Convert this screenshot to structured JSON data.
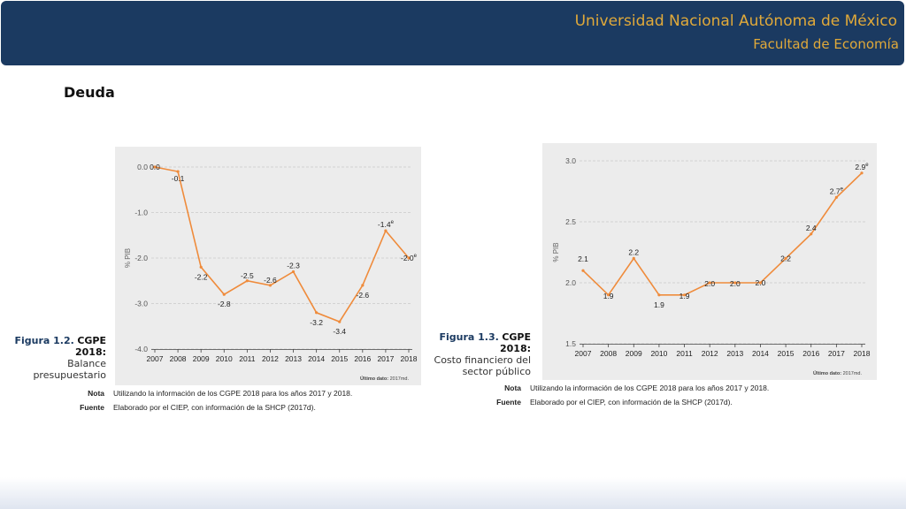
{
  "header": {
    "university": "Universidad Nacional Autónoma de México",
    "faculty": "Facultad de Economía"
  },
  "slide_title": "Deuda",
  "figures": [
    {
      "fig_number": "Figura 1.2.",
      "fig_name": "CGPE 2018:",
      "caption_lines": [
        "Balance",
        "presupuestario"
      ],
      "nota_label": "Nota",
      "nota_text": "Utilizando la información de los CGPE 2018 para los años 2017 y 2018.",
      "fuente_label": "Fuente",
      "fuente_text": "Elaborado por el CIEP, con información de la SHCP (2017d)."
    },
    {
      "fig_number": "Figura 1.3.",
      "fig_name": "CGPE 2018:",
      "caption_lines": [
        "Costo financiero del",
        "sector público"
      ],
      "nota_label": "Nota",
      "nota_text": "Utilizando la información de los CGPE 2018 para los años 2017 y 2018.",
      "fuente_label": "Fuente",
      "fuente_text": "Elaborado por el CIEP, con información de la SHCP (2017d)."
    }
  ],
  "chart_data": [
    {
      "type": "line",
      "x": [
        "2007",
        "2008",
        "2009",
        "2010",
        "2011",
        "2012",
        "2013",
        "2014",
        "2015",
        "2016",
        "2017",
        "2018"
      ],
      "series": [
        {
          "values": [
            0.0,
            -0.1,
            -2.2,
            -2.8,
            -2.5,
            -2.6,
            -2.3,
            -3.2,
            -3.4,
            -2.6,
            -1.4,
            -2.0
          ]
        }
      ],
      "point_labels": [
        "0.0",
        "-0.1",
        "-2.2",
        "-2.8",
        "-2.5",
        "-2.6",
        "-2.3",
        "-3.2",
        "-3.4",
        "-2.6",
        "-1.4",
        "-2.0"
      ],
      "estimate_marker": "e",
      "estimate_years": [
        "2017",
        "2018"
      ],
      "ylabel": "% PIB",
      "ylim": [
        -4.0,
        0.0
      ],
      "yticks": [
        "0.0",
        "-1.0",
        "-2.0",
        "-3.0",
        "-4.0"
      ],
      "ytick_values": [
        0.0,
        -1.0,
        -2.0,
        -3.0,
        -4.0
      ],
      "grid": true,
      "line_color": "#ef8b3b",
      "source_note_label": "Último dato:",
      "source_note_value": "2017md."
    },
    {
      "type": "line",
      "x": [
        "2007",
        "2008",
        "2009",
        "2010",
        "2011",
        "2012",
        "2013",
        "2014",
        "2015",
        "2016",
        "2017",
        "2018"
      ],
      "series": [
        {
          "values": [
            2.1,
            1.9,
            2.2,
            1.9,
            1.9,
            2.0,
            2.0,
            2.0,
            2.2,
            2.4,
            2.7,
            2.9
          ]
        }
      ],
      "point_labels": [
        "2.1",
        "1.9",
        "2.2",
        "1.9",
        "1.9",
        "2.0",
        "2.0",
        "2.0",
        "2.2",
        "2.4",
        "2.7",
        "2.9"
      ],
      "estimate_marker": "e",
      "estimate_years": [
        "2017",
        "2018"
      ],
      "ylabel": "% PIB",
      "ylim": [
        1.5,
        3.0
      ],
      "yticks": [
        "3.0",
        "2.5",
        "2.0",
        "1.5"
      ],
      "ytick_values": [
        3.0,
        2.5,
        2.0,
        1.5
      ],
      "grid": true,
      "line_color": "#ef8b3b",
      "source_note_label": "Último dato:",
      "source_note_value": "2017md."
    }
  ]
}
